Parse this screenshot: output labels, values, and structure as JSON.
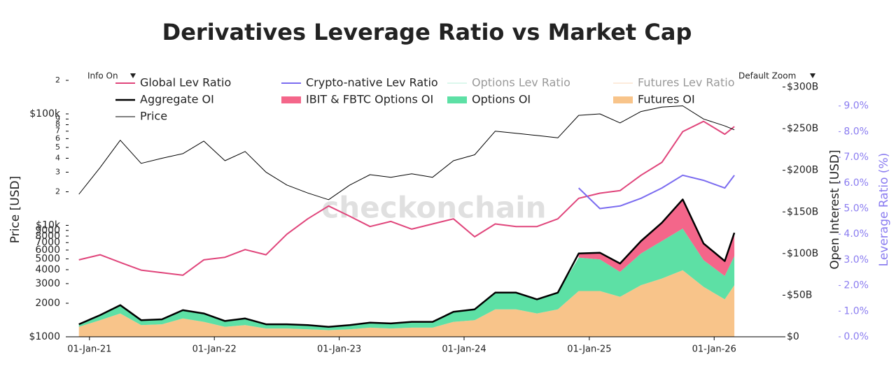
{
  "chart_data": {
    "type": "line",
    "title": "Derivatives Leverage Ratio vs Market Cap",
    "controls": {
      "info": "Info On",
      "zoom": "Default Zoom"
    },
    "watermark": "checkonchain",
    "ylabel": "Price [USD]",
    "y2label": "Open Interest [USD]",
    "y3label": "Leverage Ratio (%)",
    "log_y": true,
    "xlim": [
      "2020-11-01",
      "2026-07-20"
    ],
    "xticks": [
      {
        "value": "2021-01-01",
        "label": "01-Jan-21"
      },
      {
        "value": "2022-01-01",
        "label": "01-Jan-22"
      },
      {
        "value": "2023-01-01",
        "label": "01-Jan-23"
      },
      {
        "value": "2024-01-01",
        "label": "01-Jan-24"
      },
      {
        "value": "2025-01-01",
        "label": "01-Jan-25"
      },
      {
        "value": "2026-01-01",
        "label": "01-Jan-26"
      }
    ],
    "ylim": [
      1000,
      200000
    ],
    "yticks": [
      {
        "value": 1000,
        "label": "$1000"
      },
      2000,
      3000,
      4000,
      5000,
      6000,
      7000,
      8000,
      9000,
      {
        "value": 10000,
        "label": "$10k"
      },
      {
        "value": 20000,
        "label": "2"
      },
      {
        "value": 30000,
        "label": "3"
      },
      {
        "value": 40000,
        "label": "4"
      },
      {
        "value": 50000,
        "label": "5"
      },
      {
        "value": 60000,
        "label": "6"
      },
      {
        "value": 70000,
        "label": "7"
      },
      {
        "value": 80000,
        "label": "8"
      },
      {
        "value": 90000,
        "label": "9"
      },
      {
        "value": 100000,
        "label": "$100k"
      },
      {
        "value": 200000,
        "label": "2"
      }
    ],
    "y2lim": [
      0,
      308000000000.0
    ],
    "y2ticks": [
      {
        "value": 0,
        "label": "$0"
      },
      {
        "value": 50000000000.0,
        "label": "$50B"
      },
      {
        "value": 100000000000.0,
        "label": "$100B"
      },
      {
        "value": 150000000000.0,
        "label": "$150B"
      },
      {
        "value": 200000000000.0,
        "label": "$200B"
      },
      {
        "value": 250000000000.0,
        "label": "$250B"
      },
      {
        "value": 300000000000.0,
        "label": "$300B"
      }
    ],
    "y3lim": [
      0,
      10
    ],
    "y3ticks": [
      {
        "value": 0,
        "label": "0.0%"
      },
      {
        "value": 1,
        "label": "1.0%"
      },
      {
        "value": 2,
        "label": "2.0%"
      },
      {
        "value": 3,
        "label": "3.0%"
      },
      {
        "value": 4,
        "label": "4.0%"
      },
      {
        "value": 5,
        "label": "5.0%"
      },
      {
        "value": 6,
        "label": "6.0%"
      },
      {
        "value": 7,
        "label": "7.0%"
      },
      {
        "value": 8,
        "label": "8.0%"
      },
      {
        "value": 9,
        "label": "9.0%"
      }
    ],
    "x": [
      "2020-12-01",
      "2021-02-01",
      "2021-04-01",
      "2021-06-01",
      "2021-08-01",
      "2021-10-01",
      "2021-12-01",
      "2022-02-01",
      "2022-04-01",
      "2022-06-01",
      "2022-08-01",
      "2022-10-01",
      "2022-12-01",
      "2023-02-01",
      "2023-04-01",
      "2023-06-01",
      "2023-08-01",
      "2023-10-01",
      "2023-12-01",
      "2024-02-01",
      "2024-04-01",
      "2024-06-01",
      "2024-08-01",
      "2024-10-01",
      "2024-12-01",
      "2025-02-01",
      "2025-04-01",
      "2025-06-01",
      "2025-08-01",
      "2025-10-01",
      "2025-12-01",
      "2026-02-01",
      "2026-03-01"
    ],
    "series": [
      {
        "name": "Global Lev Ratio",
        "color": "#e0457b",
        "axis": "y3",
        "kind": "line",
        "width": 2,
        "values": [
          3.0,
          3.2,
          2.9,
          2.6,
          2.5,
          2.4,
          3.0,
          3.1,
          3.4,
          3.2,
          4.0,
          4.6,
          5.1,
          4.7,
          4.3,
          4.5,
          4.2,
          4.4,
          4.6,
          3.9,
          4.4,
          4.3,
          4.3,
          4.6,
          5.4,
          5.6,
          5.7,
          6.3,
          6.8,
          8.0,
          8.4,
          7.9,
          8.2
        ]
      },
      {
        "name": "Crypto-native Lev Ratio",
        "color": "#7b6cf0",
        "axis": "y3",
        "kind": "line",
        "width": 2,
        "values": [
          null,
          null,
          null,
          null,
          null,
          null,
          null,
          null,
          null,
          null,
          null,
          null,
          null,
          null,
          null,
          null,
          null,
          null,
          null,
          null,
          null,
          null,
          null,
          null,
          5.8,
          5.0,
          5.1,
          5.4,
          5.8,
          6.3,
          6.1,
          5.8,
          6.3
        ]
      },
      {
        "name": "Options Lev Ratio",
        "color": "#b8f0dd",
        "visible": false
      },
      {
        "name": "Futures Lev Ratio",
        "color": "#fcd9b8",
        "visible": false
      },
      {
        "name": "Aggregate OI",
        "color": "#000000",
        "axis": "y2",
        "kind": "line",
        "width": 2.5,
        "values": [
          15000000000.0,
          26000000000.0,
          38000000000.0,
          20000000000.0,
          21000000000.0,
          32000000000.0,
          28000000000.0,
          19000000000.0,
          22000000000.0,
          15000000000.0,
          15000000000.0,
          14000000000.0,
          12000000000.0,
          14000000000.0,
          17000000000.0,
          16000000000.0,
          18000000000.0,
          18000000000.0,
          30000000000.0,
          33000000000.0,
          53000000000.0,
          53000000000.0,
          45000000000.0,
          53000000000.0,
          100000000000.0,
          101000000000.0,
          88000000000.0,
          115000000000.0,
          137000000000.0,
          165000000000.0,
          112000000000.0,
          91000000000.0,
          125000000000.0
        ]
      },
      {
        "name": "IBIT & FBTC Options OI",
        "color": "#f4668a",
        "axis": "y2",
        "kind": "area",
        "stack": 2,
        "values": [
          null,
          null,
          null,
          null,
          null,
          null,
          null,
          null,
          null,
          null,
          null,
          null,
          null,
          null,
          null,
          null,
          null,
          null,
          null,
          null,
          null,
          null,
          null,
          null,
          5000000000.0,
          8000000000.0,
          10000000000.0,
          15000000000.0,
          22000000000.0,
          35000000000.0,
          20000000000.0,
          18000000000.0,
          28000000000.0
        ]
      },
      {
        "name": "Options OI",
        "color": "#5de0a5",
        "axis": "y2",
        "kind": "area",
        "stack": 1,
        "values": [
          3000000000.0,
          6000000000.0,
          10000000000.0,
          6000000000.0,
          6000000000.0,
          10000000000.0,
          10000000000.0,
          7000000000.0,
          8000000000.0,
          5000000000.0,
          5000000000.0,
          5000000000.0,
          4000000000.0,
          5000000000.0,
          6000000000.0,
          6000000000.0,
          7000000000.0,
          7000000000.0,
          12000000000.0,
          13000000000.0,
          20000000000.0,
          20000000000.0,
          17000000000.0,
          20000000000.0,
          40000000000.0,
          38000000000.0,
          30000000000.0,
          38000000000.0,
          45000000000.0,
          50000000000.0,
          32000000000.0,
          28000000000.0,
          35000000000.0
        ]
      },
      {
        "name": "Futures OI",
        "color": "#f8c48a",
        "axis": "y2",
        "kind": "area",
        "stack": 0,
        "values": [
          12000000000.0,
          20000000000.0,
          28000000000.0,
          14000000000.0,
          15000000000.0,
          22000000000.0,
          18000000000.0,
          12000000000.0,
          14000000000.0,
          10000000000.0,
          10000000000.0,
          9000000000.0,
          8000000000.0,
          9000000000.0,
          11000000000.0,
          10000000000.0,
          11000000000.0,
          11000000000.0,
          18000000000.0,
          20000000000.0,
          33000000000.0,
          33000000000.0,
          28000000000.0,
          33000000000.0,
          55000000000.0,
          55000000000.0,
          48000000000.0,
          62000000000.0,
          70000000000.0,
          80000000000.0,
          60000000000.0,
          45000000000.0,
          62000000000.0
        ]
      },
      {
        "name": "Price",
        "color": "#000000",
        "axis": "y",
        "kind": "line",
        "width": 1,
        "values": [
          19000,
          33000,
          58000,
          36000,
          40000,
          44000,
          57000,
          38000,
          46000,
          30000,
          23000,
          19500,
          17000,
          23000,
          28500,
          27000,
          29000,
          27000,
          38000,
          43000,
          70000,
          67000,
          64000,
          61000,
          97000,
          100000,
          83000,
          105000,
          115000,
          118000,
          90000,
          78000,
          72000
        ]
      }
    ]
  }
}
